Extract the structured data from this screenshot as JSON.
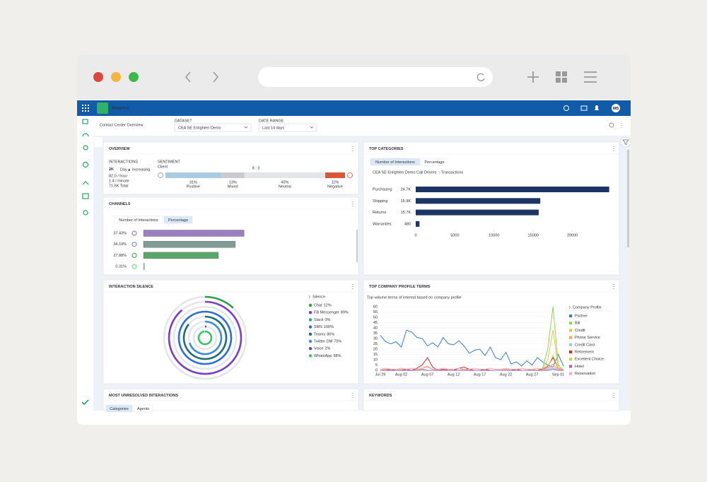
{
  "app": {
    "name": "Analytics",
    "user": "MB"
  },
  "toolbar": {
    "title": "Contact Center Overview",
    "dataset_label": "DATASET",
    "dataset": "CEA SE Enlighten Demo",
    "date_range_label": "DATE RANGE",
    "date_range": "Last 14 days"
  },
  "overview": {
    "title": "OVERVIEW",
    "interactions_label": "INTERACTIONS",
    "count": "2K",
    "period": "Day",
    "trend": "▲ Increasing",
    "per_hour": "82.0 / hour",
    "per_minute": "1.4 / minute",
    "total": "71.6K Total",
    "sentiment_label": "SENTIMENT",
    "sentiment_source": "Client",
    "ratio": "8 : 3",
    "chart_data": {
      "type": "stacked-bar",
      "categories": [
        "Positive",
        "Mixed",
        "Neutral",
        "Negative"
      ],
      "values": [
        31,
        13,
        45,
        11
      ],
      "value_labels": [
        "31%",
        "13%",
        "45%",
        "11%"
      ],
      "colors": [
        "#a9cbe3",
        "#c9cbcf",
        "#e3e5e8",
        "#d9553b"
      ],
      "xlim": [
        0,
        100
      ]
    }
  },
  "channels": {
    "title": "CHANNELS",
    "tabs": [
      "Number of Interactions",
      "Percentage"
    ],
    "chart_data": {
      "type": "bar",
      "orientation": "horizontal",
      "values": [
        37.43,
        34.19,
        27.88,
        0.31
      ],
      "value_labels": [
        "37.43%",
        "34.19%",
        "27.88%",
        "0.31%"
      ],
      "colors": [
        "#9b7fc0",
        "#7f9c97",
        "#5aa76a",
        "#7ddc94"
      ],
      "xlim": [
        0,
        40
      ]
    }
  },
  "top_categories": {
    "title": "TOP CATEGORIES",
    "tabs": [
      "Number of Interactions",
      "Percentage"
    ],
    "breadcrumb": [
      "CEA SE Enlighten Demo",
      "Call Drivers",
      "Transactions"
    ],
    "chart_data": {
      "type": "bar",
      "orientation": "horizontal",
      "categories": [
        "Purchasing",
        "Shipping",
        "Returns",
        "Warranties"
      ],
      "values": [
        24700,
        15900,
        15700,
        480
      ],
      "value_labels": [
        "24.7K",
        "15.9K",
        "15.7K",
        "480"
      ],
      "color": "#1d3466",
      "xlim": [
        0,
        25000
      ],
      "xticks": [
        0,
        5000,
        10000,
        15000,
        20000
      ]
    }
  },
  "interaction_silence": {
    "title": "INTERACTION SILENCE",
    "chart_data": {
      "type": "radial-bar",
      "legend_title": "Silence",
      "xlim": [
        0,
        100
      ],
      "series": [
        {
          "name": "Chat",
          "value": 12,
          "value_label": "12%",
          "color": "#2e9e4a"
        },
        {
          "name": "FB Messenger",
          "value": 89,
          "value_label": "89%",
          "color": "#7b3fc4"
        },
        {
          "name": "Slack",
          "value": 0,
          "value_label": "0%",
          "color": "#2aa198"
        },
        {
          "name": "SMS",
          "value": 100,
          "value_label": "100%",
          "color": "#2b6fd6"
        },
        {
          "name": "Teams",
          "value": 86,
          "value_label": "86%",
          "color": "#1f6f6f"
        },
        {
          "name": "Twitter DM",
          "value": 70,
          "value_label": "70%",
          "color": "#3b8bd9"
        },
        {
          "name": "Voice",
          "value": 2,
          "value_label": "2%",
          "color": "#6a3fb5"
        },
        {
          "name": "WhatsApp",
          "value": 98,
          "value_label": "98%",
          "color": "#3cc46a"
        }
      ]
    }
  },
  "company_profile": {
    "title": "TOP COMPANY PROFILE TERMS",
    "chart_data": {
      "type": "line",
      "subtitle": "Top volume terms of interest based on company profile",
      "legend_title": "Company Profile",
      "categories": [
        "Jul 29",
        null,
        null,
        null,
        "Aug 02",
        null,
        null,
        null,
        null,
        "Aug 07",
        null,
        null,
        null,
        null,
        "Aug 12",
        null,
        null,
        null,
        null,
        "Aug 17",
        null,
        null,
        null,
        null,
        "Aug 22",
        null,
        null,
        null,
        null,
        "Aug 27",
        null,
        null,
        null,
        null,
        "Sep 01",
        null
      ],
      "ylim": [
        0,
        60
      ],
      "yticks": [
        0,
        5,
        10,
        15,
        20,
        25,
        30,
        35,
        40,
        45,
        50,
        55,
        60
      ],
      "series": [
        {
          "name": "Partner",
          "color": "#3b7dc4",
          "values": [
            33,
            27,
            25,
            27,
            22,
            38,
            36,
            31,
            30,
            23,
            26,
            22,
            31,
            25,
            24,
            28,
            23,
            16,
            19,
            20,
            14,
            22,
            12,
            10,
            17,
            6,
            8,
            4,
            9,
            5,
            12,
            8,
            5,
            3,
            15,
            4
          ]
        },
        {
          "name": "Bill",
          "color": "#8fd45a",
          "values": [
            0,
            0,
            0,
            0,
            0,
            0,
            0,
            0,
            0,
            0,
            0,
            0,
            0,
            0,
            0,
            0,
            0,
            0,
            0,
            0,
            0,
            0,
            0,
            0,
            0,
            0,
            0,
            0,
            0,
            0,
            0,
            2,
            20,
            60,
            5,
            0
          ]
        },
        {
          "name": "Credit",
          "color": "#e8c93a",
          "values": [
            0,
            0,
            0,
            0,
            0,
            0,
            0,
            0,
            0,
            0,
            0,
            0,
            0,
            0,
            0,
            0,
            0,
            0,
            0,
            0,
            0,
            0,
            0,
            0,
            0,
            0,
            0,
            0,
            0,
            0,
            0,
            1,
            10,
            38,
            3,
            0
          ]
        },
        {
          "name": "Phone Service",
          "color": "#f0a35a",
          "values": [
            0,
            1,
            0,
            0,
            1,
            0,
            0,
            1,
            2,
            4,
            1,
            0,
            0,
            1,
            0,
            0,
            1,
            0,
            0,
            0,
            1,
            0,
            0,
            0,
            1,
            0,
            0,
            0,
            0,
            1,
            0,
            0,
            2,
            6,
            1,
            0
          ]
        },
        {
          "name": "Credit Card",
          "color": "#9ecae1",
          "values": [
            0,
            0,
            0,
            0,
            0,
            0,
            0,
            0,
            0,
            0,
            0,
            0,
            0,
            0,
            0,
            0,
            0,
            0,
            0,
            0,
            0,
            0,
            0,
            0,
            0,
            0,
            0,
            0,
            0,
            0,
            0,
            0,
            1,
            2,
            0,
            0
          ]
        },
        {
          "name": "Retirement",
          "color": "#d62728",
          "values": [
            0,
            0,
            1,
            0,
            0,
            1,
            0,
            2,
            5,
            12,
            3,
            0,
            1,
            0,
            0,
            2,
            3,
            1,
            0,
            0,
            1,
            0,
            0,
            0,
            0,
            0,
            1,
            0,
            0,
            0,
            0,
            1,
            4,
            12,
            2,
            0
          ]
        },
        {
          "name": "Excellent Choice",
          "color": "#bcd35f",
          "values": [
            0,
            0,
            0,
            0,
            0,
            0,
            0,
            0,
            0,
            0,
            0,
            0,
            0,
            0,
            0,
            0,
            0,
            0,
            0,
            0,
            0,
            0,
            0,
            0,
            0,
            0,
            0,
            0,
            0,
            0,
            0,
            0,
            3,
            14,
            2,
            0
          ]
        },
        {
          "name": "Hotel",
          "color": "#9467bd",
          "values": [
            0,
            0,
            0,
            0,
            0,
            0,
            0,
            0,
            1,
            0,
            0,
            0,
            0,
            0,
            0,
            0,
            0,
            0,
            0,
            0,
            0,
            0,
            0,
            0,
            0,
            0,
            0,
            0,
            0,
            0,
            0,
            0,
            0,
            1,
            0,
            0
          ]
        },
        {
          "name": "Reservation",
          "color": "#f7a6b8",
          "values": [
            1,
            2,
            1,
            1,
            2,
            1,
            2,
            1,
            2,
            3,
            1,
            1,
            2,
            1,
            1,
            2,
            1,
            1,
            2,
            1,
            1,
            2,
            1,
            1,
            2,
            1,
            1,
            2,
            1,
            1,
            2,
            1,
            2,
            3,
            1,
            1
          ]
        }
      ]
    }
  },
  "unresolved": {
    "title": "MOST UNRESOLVED INTERACTIONS",
    "tabs": [
      "Categories",
      "Agents"
    ]
  },
  "keywords": {
    "title": "KEYWORDS"
  }
}
